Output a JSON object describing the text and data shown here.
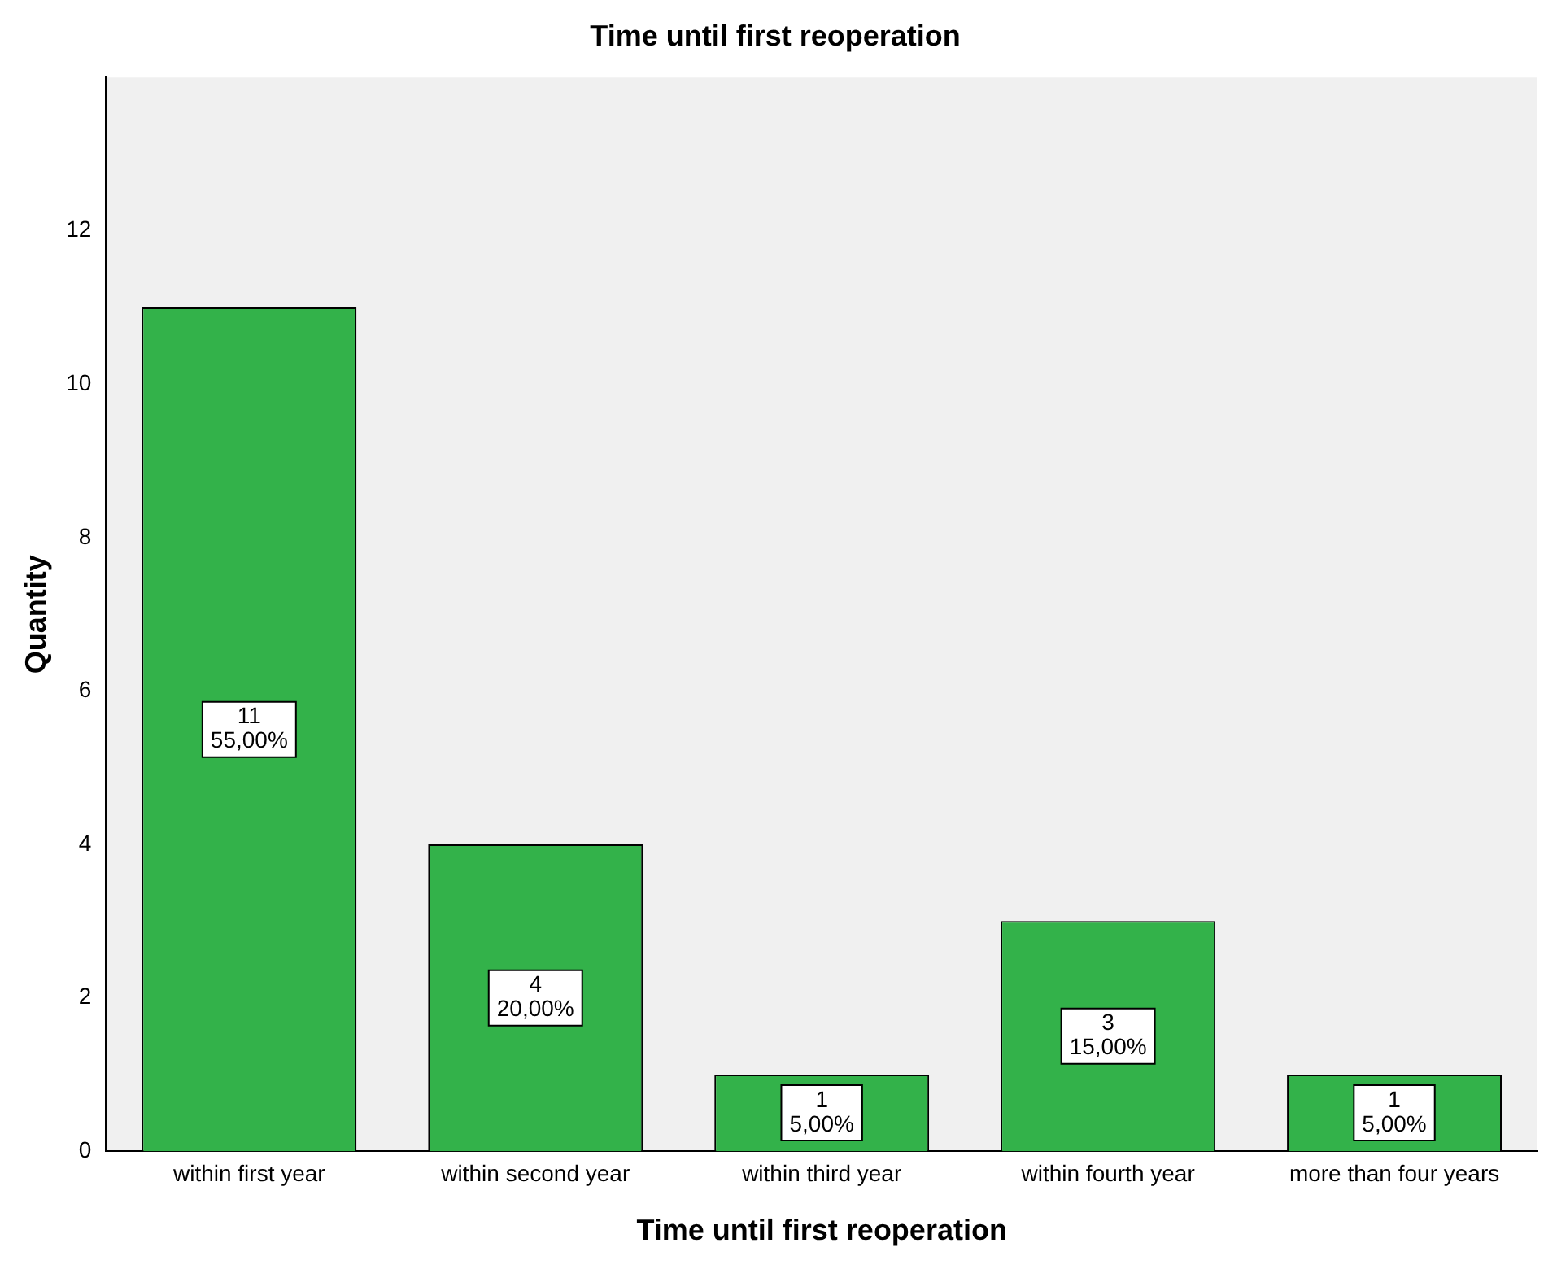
{
  "chart_data": {
    "type": "bar",
    "title": "Time until first reoperation",
    "xlabel": "Time until first reoperation",
    "ylabel": "Quantity",
    "categories": [
      "within first year",
      "within second year",
      "within third year",
      "within fourth year",
      "more than four years"
    ],
    "values": [
      11,
      4,
      1,
      3,
      1
    ],
    "value_labels": [
      "11\n55,00%",
      "4\n20,00%",
      "1\n5,00%",
      "3\n15,00%",
      "1\n5,00%"
    ],
    "color": "#33b24a",
    "ylim": [
      0,
      14
    ],
    "yticks": [
      0,
      2,
      4,
      6,
      8,
      10,
      12
    ],
    "grid": false,
    "legend": false
  }
}
